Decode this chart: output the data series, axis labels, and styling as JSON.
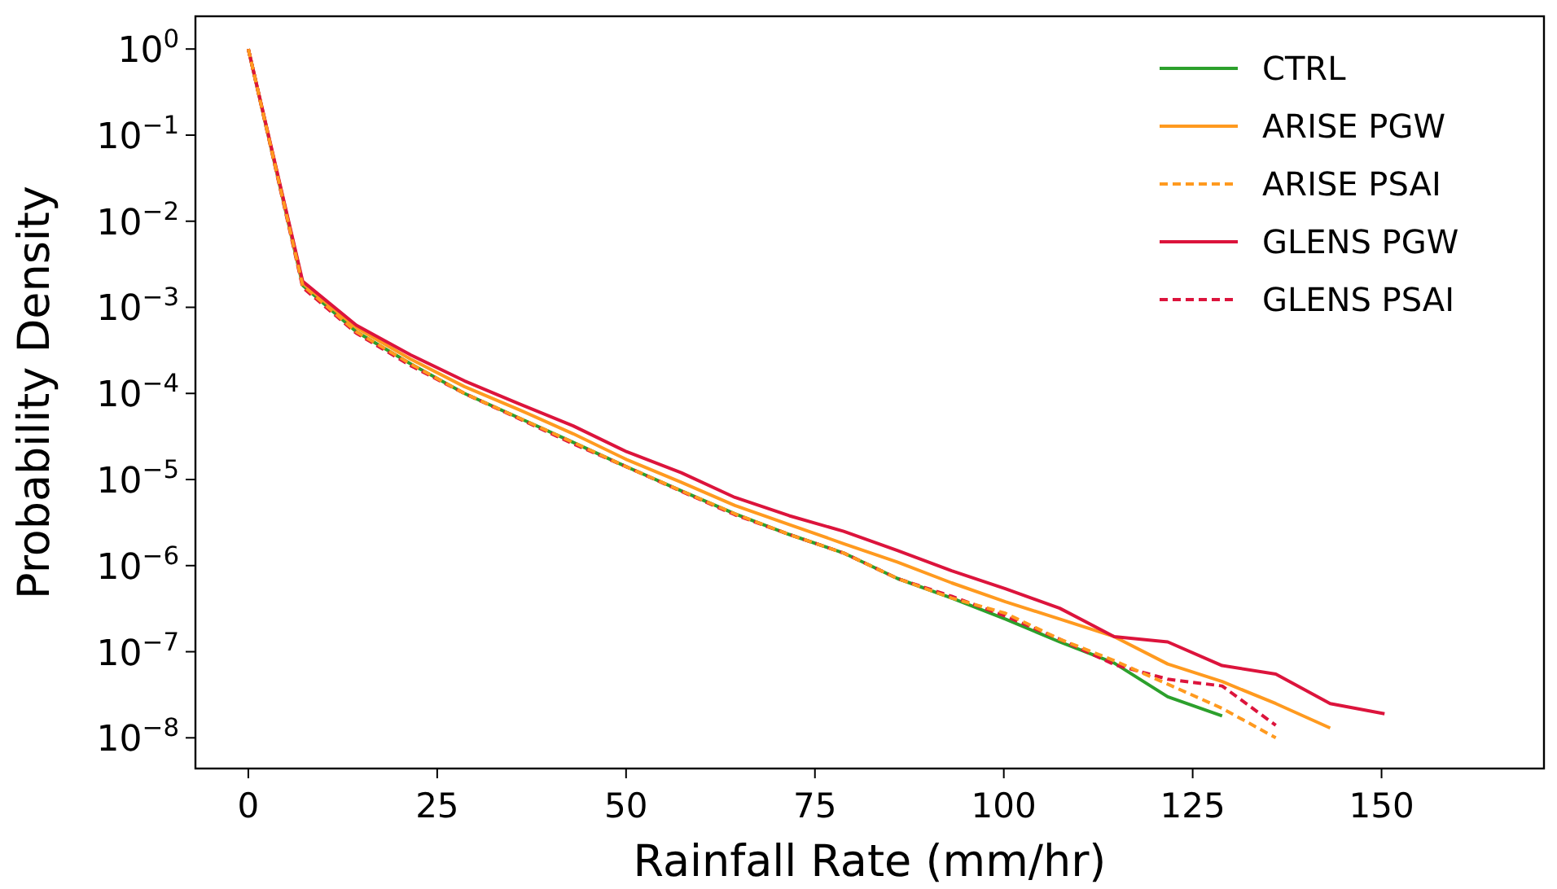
{
  "chart_data": {
    "type": "line",
    "xlabel": "Rainfall Rate (mm/hr)",
    "ylabel": "Probability Density",
    "x": [
      0,
      7.2,
      14.3,
      21.5,
      28.6,
      35.8,
      43,
      50.1,
      57.3,
      64.4,
      71.6,
      78.8,
      85.9,
      93.1,
      100.2,
      107.4,
      114.6,
      121.7,
      128.9,
      136,
      143.2,
      150.4
    ],
    "log": "y",
    "xlim": [
      -7,
      171.5
    ],
    "ylim": [
      4.4e-09,
      2.4
    ],
    "xticks": [
      0,
      25,
      50,
      75,
      100,
      125,
      150
    ],
    "yticks": [
      {
        "value": 1,
        "label": "10$^{0}$"
      },
      {
        "value": 0.1,
        "label": "10$^{−1}$"
      },
      {
        "value": 0.01,
        "label": "10$^{−2}$"
      },
      {
        "value": 0.001,
        "label": "10$^{−3}$"
      },
      {
        "value": 0.0001,
        "label": "10$^{−4}$"
      },
      {
        "value": 1e-05,
        "label": "10$^{−5}$"
      },
      {
        "value": 1e-06,
        "label": "10$^{−6}$"
      },
      {
        "value": 1e-07,
        "label": "10$^{−7}$"
      },
      {
        "value": 1e-08,
        "label": "10$^{−8}$"
      }
    ],
    "grid": false,
    "legend": "top right",
    "marker": "none",
    "series": [
      {
        "name": "CTRL",
        "color": "#2ca02c",
        "line_style": "solid",
        "values": [
          1,
          0.0018,
          0.00052,
          0.00022,
          0.0001,
          5.2e-05,
          2.7e-05,
          1.4e-05,
          7.4e-06,
          4e-06,
          2.3e-06,
          1.4e-06,
          7.1e-07,
          4.2e-07,
          2.4e-07,
          1.3e-07,
          7.4e-08,
          3e-08,
          1.8e-08,
          null,
          null,
          null
        ]
      },
      {
        "name": "ARISE PGW",
        "color": "#ff9a1f",
        "line_style": "solid",
        "values": [
          1,
          0.0019,
          0.00058,
          0.00025,
          0.00012,
          6.5e-05,
          3.4e-05,
          1.7e-05,
          9.3e-06,
          5e-06,
          3e-06,
          1.8e-06,
          1.1e-06,
          6.3e-07,
          3.8e-07,
          2.4e-07,
          1.5e-07,
          7.2e-08,
          4.5e-08,
          2.5e-08,
          1.3e-08,
          null
        ]
      },
      {
        "name": "ARISE PSAI",
        "color": "#ff9a1f",
        "line_style": "dashed",
        "values": [
          1,
          0.0018,
          0.00052,
          0.00022,
          0.0001,
          5.2e-05,
          2.7e-05,
          1.4e-05,
          7.4e-06,
          4e-06,
          2.3e-06,
          1.4e-06,
          7.1e-07,
          4.2e-07,
          2.8e-07,
          1.4e-07,
          7.9e-08,
          4.2e-08,
          2.2e-08,
          1e-08,
          null,
          null
        ]
      },
      {
        "name": "GLENS PGW",
        "color": "#dc143c",
        "line_style": "solid",
        "values": [
          1,
          0.002,
          0.00062,
          0.00028,
          0.00014,
          7.6e-05,
          4.2e-05,
          2.1e-05,
          1.2e-05,
          6.2e-06,
          3.8e-06,
          2.5e-06,
          1.5e-06,
          8.7e-07,
          5.4e-07,
          3.2e-07,
          1.5e-07,
          1.3e-07,
          6.9e-08,
          5.5e-08,
          2.5e-08,
          1.9e-08
        ]
      },
      {
        "name": "GLENS PSAI",
        "color": "#dc143c",
        "line_style": "dashed",
        "values": [
          1,
          0.0017,
          0.0005,
          0.00021,
          0.0001,
          5.1e-05,
          2.6e-05,
          1.4e-05,
          7.3e-06,
          3.9e-06,
          2.3e-06,
          1.4e-06,
          7.1e-07,
          4.4e-07,
          2.6e-07,
          1.4e-07,
          7.1e-08,
          4.8e-08,
          4e-08,
          1.4e-08,
          null,
          null
        ]
      }
    ]
  }
}
